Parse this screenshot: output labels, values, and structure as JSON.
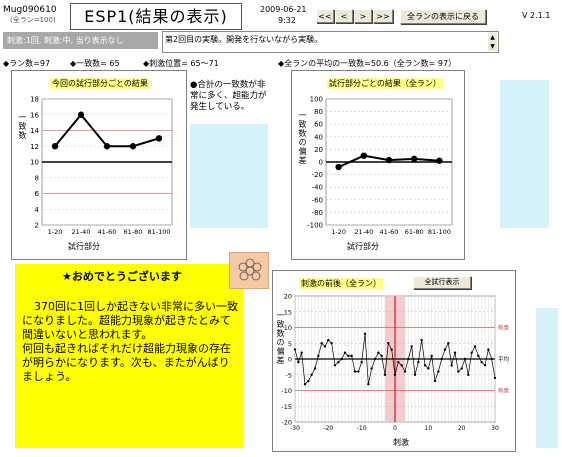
{
  "header": {
    "app_id": "Mug090610",
    "app_sub": "(全ラン=100)",
    "title": "ESP1(結果の表示)",
    "date": "2009-06-21",
    "time": "9:32",
    "nav": [
      "<<",
      "<",
      ">",
      ">>"
    ],
    "all_runs_button": "全ランの表示に戻る",
    "version": "V 2.1.1",
    "condition": "刺激:1回, 刺激:中, 当り表示なし",
    "comment": "第2回目の実験。開発を行ないながら実験。"
  },
  "stats": {
    "runs": "◆ラン数=97",
    "match_count": "◆一致数= 65",
    "stim_pos": "◆刺激位置= 65〜71",
    "all_avg": "◆全ランの平均の一致数=50.6（全ラン数= 97）"
  },
  "left_note": "●合計の一致数が非常に多く、超能力が発生している。",
  "congrats": {
    "title": "★おめでとうございます",
    "body": "370回に1回しか起きない非常に多い一致になりました。超能力現象が起きたとみて間違いないと思われます。\n何回も起きればそれだけ超能力現象の存在が明らかになります。次も、またがんばりましょう。"
  },
  "stim_button": "全試行表示",
  "chart_data": [
    {
      "type": "line",
      "title": "今回の試行部分ごとの結果",
      "xlabel": "試行部分",
      "ylabel": "一致数",
      "categories": [
        "1-20",
        "21-40",
        "41-60",
        "61-80",
        "81-100"
      ],
      "values": [
        12,
        16,
        12,
        12,
        13
      ],
      "ylim": [
        2,
        18
      ],
      "yticks": [
        2,
        4,
        6,
        8,
        10,
        12,
        14,
        16,
        18
      ],
      "reference_lines": [
        10,
        14,
        6
      ],
      "grid": true
    },
    {
      "type": "line",
      "title": "試行部分ごとの結果（全ラン）",
      "xlabel": "試行部分",
      "ylabel": "一致数の偏差",
      "categories": [
        "1-20",
        "21-40",
        "41-60",
        "61-80",
        "81-100"
      ],
      "values": [
        -8,
        10,
        3,
        5,
        2
      ],
      "ylim": [
        -100,
        100
      ],
      "yticks": [
        -100,
        -80,
        -60,
        -40,
        -20,
        0,
        20,
        40,
        60,
        80,
        100
      ],
      "grid": true
    },
    {
      "type": "line",
      "title": "刺激の前後（全ラン）",
      "xlabel": "刺激",
      "ylabel": "一致数の偏差",
      "x": [
        -30,
        -29,
        -28,
        -27,
        -26,
        -25,
        -24,
        -23,
        -22,
        -21,
        -20,
        -19,
        -18,
        -17,
        -16,
        -15,
        -14,
        -13,
        -12,
        -11,
        -10,
        -9,
        -8,
        -7,
        -6,
        -5,
        -4,
        -3,
        -2,
        -1,
        0,
        1,
        2,
        3,
        4,
        5,
        6,
        7,
        8,
        9,
        10,
        11,
        12,
        13,
        14,
        15,
        16,
        17,
        18,
        19,
        20,
        21,
        22,
        23,
        24,
        25,
        26,
        27,
        28,
        29,
        30
      ],
      "values": [
        3,
        -1,
        2,
        -8,
        -7,
        -5,
        -3,
        1,
        5,
        4,
        6,
        5,
        -2,
        -1,
        0,
        2,
        1,
        1,
        -4,
        -4,
        -1,
        8,
        -8,
        -3,
        0,
        2,
        1,
        -5,
        5,
        3,
        -5,
        -1,
        -2,
        -4,
        0,
        4,
        -5,
        -1,
        6,
        -2,
        -3,
        1,
        -7,
        -4,
        0,
        3,
        5,
        -2,
        2,
        -4,
        -3,
        0,
        -5,
        2,
        4,
        1,
        -1,
        -2,
        3,
        0,
        -6
      ],
      "ylim": [
        -20,
        20
      ],
      "yticks": [
        -20,
        -15,
        -10,
        -5,
        0,
        5,
        10,
        15,
        20
      ],
      "xticks": [
        -30,
        -20,
        -10,
        0,
        10,
        20,
        30
      ],
      "stim_band": [
        -3,
        3
      ],
      "ref_label_upper": "有意",
      "ref_label_lower": "有意",
      "avg_label": "平均",
      "grid": true
    }
  ]
}
